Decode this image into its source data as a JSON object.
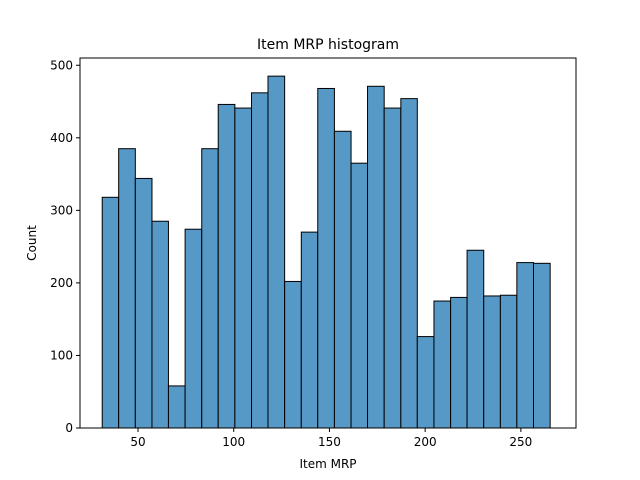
{
  "chart_data": {
    "type": "bar",
    "title": "Item MRP histogram",
    "xlabel": "Item MRP",
    "ylabel": "Count",
    "xlim": [
      19.7,
      278.8
    ],
    "ylim": [
      0,
      510
    ],
    "xticks": [
      50,
      100,
      150,
      200,
      250
    ],
    "yticks": [
      0,
      100,
      200,
      300,
      400,
      500
    ],
    "grid": false,
    "bar_color": "#5799c6",
    "edge_color": "#000000",
    "bins": [
      {
        "x0": 31.3,
        "x1": 39.9,
        "value": 318
      },
      {
        "x0": 39.9,
        "x1": 48.6,
        "value": 385
      },
      {
        "x0": 48.6,
        "x1": 57.3,
        "value": 344
      },
      {
        "x0": 57.3,
        "x1": 65.9,
        "value": 285
      },
      {
        "x0": 65.9,
        "x1": 74.6,
        "value": 58
      },
      {
        "x0": 74.6,
        "x1": 83.3,
        "value": 274
      },
      {
        "x0": 83.3,
        "x1": 91.9,
        "value": 385
      },
      {
        "x0": 91.9,
        "x1": 100.6,
        "value": 446
      },
      {
        "x0": 100.6,
        "x1": 109.3,
        "value": 441
      },
      {
        "x0": 109.3,
        "x1": 117.9,
        "value": 462
      },
      {
        "x0": 117.9,
        "x1": 126.6,
        "value": 485
      },
      {
        "x0": 126.6,
        "x1": 135.3,
        "value": 202
      },
      {
        "x0": 135.3,
        "x1": 143.9,
        "value": 270
      },
      {
        "x0": 143.9,
        "x1": 152.6,
        "value": 468
      },
      {
        "x0": 152.6,
        "x1": 161.3,
        "value": 409
      },
      {
        "x0": 161.3,
        "x1": 169.9,
        "value": 365
      },
      {
        "x0": 169.9,
        "x1": 178.6,
        "value": 471
      },
      {
        "x0": 178.6,
        "x1": 187.3,
        "value": 441
      },
      {
        "x0": 187.3,
        "x1": 195.9,
        "value": 454
      },
      {
        "x0": 195.9,
        "x1": 204.6,
        "value": 126
      },
      {
        "x0": 204.6,
        "x1": 213.3,
        "value": 175
      },
      {
        "x0": 213.3,
        "x1": 221.9,
        "value": 180
      },
      {
        "x0": 221.9,
        "x1": 230.6,
        "value": 245
      },
      {
        "x0": 230.6,
        "x1": 239.3,
        "value": 182
      },
      {
        "x0": 239.3,
        "x1": 247.9,
        "value": 183
      },
      {
        "x0": 247.9,
        "x1": 256.6,
        "value": 228
      },
      {
        "x0": 256.6,
        "x1": 265.3,
        "value": 227
      }
    ]
  }
}
